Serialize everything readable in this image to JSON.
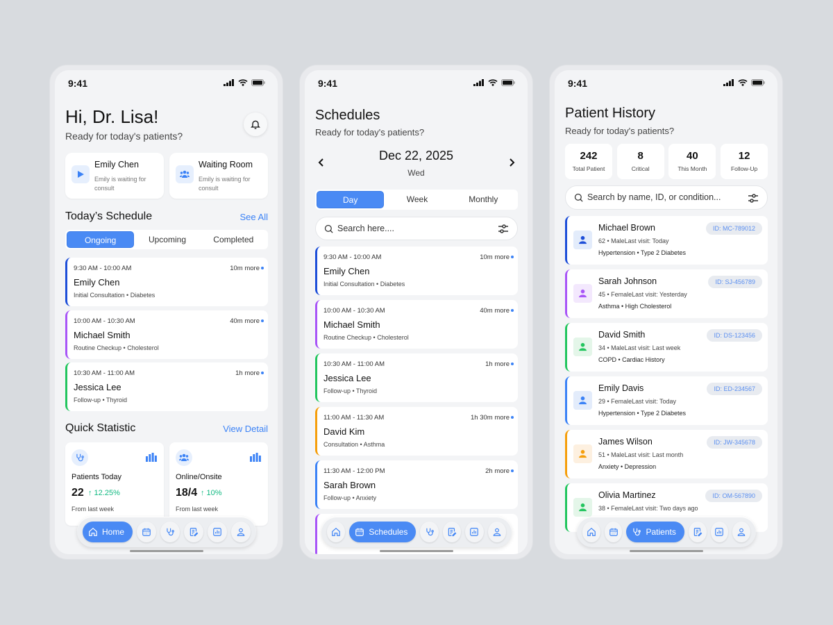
{
  "status_time": "9:41",
  "colors": {
    "accent": "#4a8af4",
    "positive": "#10b981",
    "blue_dark": "#1d4ed8",
    "purple": "#a855f7",
    "green": "#22c55e",
    "orange": "#f59e0b",
    "blue": "#3b82f6"
  },
  "home": {
    "greeting": "Hi, Dr. Lisa!",
    "subtitle": "Ready for today's patients?",
    "quick_cards": [
      {
        "title": "Emily Chen",
        "desc": "Emily is waiting for consult",
        "icon": "play-icon"
      },
      {
        "title": "Waiting Room",
        "desc": "Emily is waiting for consult",
        "icon": "group-icon"
      }
    ],
    "schedule_title": "Today’s Schedule",
    "see_all": "See All",
    "tabs": [
      "Ongoing",
      "Upcoming",
      "Completed"
    ],
    "active_tab": 0,
    "appointments": [
      {
        "time": "9:30 AM - 10:00 AM",
        "more": "10m more",
        "name": "Emily Chen",
        "detail": "Initial Consultation • Diabetes",
        "color": "#1d4ed8"
      },
      {
        "time": "10:00 AM - 10:30 AM",
        "more": "40m more",
        "name": "Michael Smith",
        "detail": "Routine Checkup • Cholesterol",
        "color": "#a855f7"
      },
      {
        "time": "10:30 AM - 11:00 AM",
        "more": "1h more",
        "name": "Jessica Lee",
        "detail": "Follow-up • Thyroid",
        "color": "#22c55e"
      }
    ],
    "stats_title": "Quick Statistic",
    "view_detail": "View Detail",
    "stats": [
      {
        "label": "Patients Today",
        "value": "22",
        "change": "↑ 12.25%",
        "note": "From last week",
        "icon": "stethoscope-icon"
      },
      {
        "label": "Online/Onsite",
        "value": "18/4",
        "change": "↑ 10%",
        "note": "From last week",
        "icon": "group-icon"
      }
    ],
    "nav_active_label": "Home"
  },
  "schedules": {
    "title": "Schedules",
    "subtitle": "Ready for today's patients?",
    "date": "Dec 22, 2025",
    "weekday": "Wed",
    "tabs": [
      "Day",
      "Week",
      "Monthly"
    ],
    "active_tab": 0,
    "search_placeholder": "Search here....",
    "appointments": [
      {
        "time": "9:30 AM - 10:00 AM",
        "more": "10m more",
        "name": "Emily Chen",
        "detail": "Initial Consultation • Diabetes",
        "color": "#1d4ed8"
      },
      {
        "time": "10:00 AM - 10:30 AM",
        "more": "40m more",
        "name": "Michael Smith",
        "detail": "Routine Checkup • Cholesterol",
        "color": "#a855f7"
      },
      {
        "time": "10:30 AM - 11:00 AM",
        "more": "1h more",
        "name": "Jessica Lee",
        "detail": "Follow-up • Thyroid",
        "color": "#22c55e"
      },
      {
        "time": "11:00 AM - 11:30 AM",
        "more": "1h 30m more",
        "name": "David Kim",
        "detail": "Consultation • Asthma",
        "color": "#f59e0b"
      },
      {
        "time": "11:30 AM - 12:00 PM",
        "more": "2h more",
        "name": "Sarah Brown",
        "detail": "Follow-up • Anxiety",
        "color": "#3b82f6"
      }
    ],
    "nav_active_label": "Schedules"
  },
  "patients": {
    "title": "Patient History",
    "subtitle": "Ready for today's patients?",
    "stats": [
      {
        "value": "242",
        "label": "Total Patient"
      },
      {
        "value": "8",
        "label": "Critical"
      },
      {
        "value": "40",
        "label": "This Month"
      },
      {
        "value": "12",
        "label": "Follow-Up"
      }
    ],
    "search_placeholder": "Search by name, ID, or condition...",
    "list": [
      {
        "name": "Michael Brown",
        "info": "62 • MaleLast visit: Today",
        "conditions": "Hypertension • Type 2 Diabetes",
        "id": "ID: MC-789012",
        "color": "#1d4ed8",
        "bg": "#e3ecfb"
      },
      {
        "name": "Sarah Johnson",
        "info": "45 • FemaleLast visit: Yesterday",
        "conditions": "Asthma • High Cholesterol",
        "id": "ID: SJ-456789",
        "color": "#a855f7",
        "bg": "#f3e8fd"
      },
      {
        "name": "David Smith",
        "info": "34 • MaleLast visit: Last week",
        "conditions": "COPD • Cardiac History",
        "id": "ID: DS-123456",
        "color": "#22c55e",
        "bg": "#e4f6e9"
      },
      {
        "name": "Emily Davis",
        "info": "29 • FemaleLast visit: Today",
        "conditions": "Hypertension • Type 2 Diabetes",
        "id": "ID: ED-234567",
        "color": "#3b82f6",
        "bg": "#e3ecfb"
      },
      {
        "name": "James Wilson",
        "info": "51 • MaleLast visit: Last month",
        "conditions": "Anxiety • Depression",
        "id": "ID: JW-345678",
        "color": "#f59e0b",
        "bg": "#fdf0e0"
      },
      {
        "name": "Olivia Martinez",
        "info": "38 • FemaleLast visit: Two days ago",
        "conditions": "",
        "id": "ID: OM-567890",
        "color": "#22c55e",
        "bg": "#e4f6e9"
      }
    ],
    "nav_active_label": "Patients"
  }
}
